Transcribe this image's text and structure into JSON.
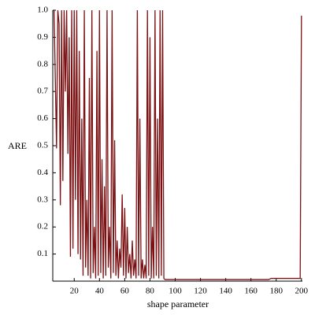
{
  "chart_data": {
    "type": "line",
    "xlabel": "shape parameter",
    "ylabel": "ARE",
    "x": [
      4,
      5,
      6,
      7,
      8,
      9,
      10,
      11,
      12,
      13,
      14,
      15,
      16,
      17,
      18,
      19,
      20,
      21,
      22,
      23,
      24,
      25,
      26,
      27,
      28,
      29,
      30,
      31,
      32,
      33,
      34,
      35,
      36,
      37,
      38,
      39,
      40,
      41,
      42,
      43,
      44,
      45,
      46,
      47,
      48,
      49,
      50,
      51,
      52,
      53,
      54,
      55,
      56,
      57,
      58,
      59,
      60,
      61,
      62,
      63,
      64,
      65,
      66,
      67,
      68,
      69,
      70,
      71,
      72,
      73,
      74,
      75,
      76,
      77,
      78,
      79,
      80,
      81,
      82,
      83,
      84,
      85,
      86,
      87,
      88,
      89,
      90,
      91,
      92,
      100,
      110,
      120,
      130,
      140,
      150,
      160,
      170,
      174,
      176,
      180,
      190,
      198,
      199,
      199.5,
      200
    ],
    "series": [
      {
        "color": "#7b1113",
        "values": [
          1.0,
          0.75,
          0.49,
          1.0,
          0.95,
          0.28,
          1.0,
          0.37,
          1.0,
          0.7,
          1.0,
          0.47,
          0.9,
          0.09,
          1.0,
          0.12,
          1.0,
          0.3,
          1.0,
          0.1,
          0.85,
          0.08,
          0.6,
          0.02,
          1.0,
          0.05,
          0.3,
          0.02,
          0.75,
          0.01,
          1.0,
          0.03,
          0.2,
          0.01,
          0.85,
          0.02,
          1.0,
          0.03,
          0.45,
          0.01,
          0.35,
          0.02,
          1.0,
          0.05,
          0.2,
          0.01,
          1.0,
          0.03,
          0.52,
          0.02,
          0.15,
          0.01,
          0.12,
          0.05,
          0.32,
          0.02,
          0.27,
          0.01,
          0.2,
          0.03,
          0.1,
          0.01,
          0.15,
          0.02,
          0.08,
          0.01,
          1.0,
          0.02,
          0.6,
          0.01,
          0.08,
          0.01,
          0.06,
          0.01,
          1.0,
          0.02,
          0.9,
          0.01,
          0.2,
          0.01,
          1.0,
          0.02,
          0.6,
          0.01,
          1.0,
          0.02,
          1.0,
          0.01,
          0.006,
          0.006,
          0.006,
          0.006,
          0.006,
          0.006,
          0.006,
          0.006,
          0.006,
          0.006,
          0.01,
          0.01,
          0.01,
          0.01,
          0.01,
          0.5,
          0.98
        ]
      }
    ],
    "xlim": [
      3,
      200
    ],
    "ylim": [
      0,
      1
    ],
    "xticks": [
      20,
      40,
      60,
      80,
      100,
      120,
      140,
      160,
      180,
      200
    ],
    "yticks": [
      0.1,
      0.2,
      0.3,
      0.4,
      0.5,
      0.6,
      0.7,
      0.8,
      0.9,
      {
        "value": 1,
        "label": "1.0"
      }
    ]
  }
}
